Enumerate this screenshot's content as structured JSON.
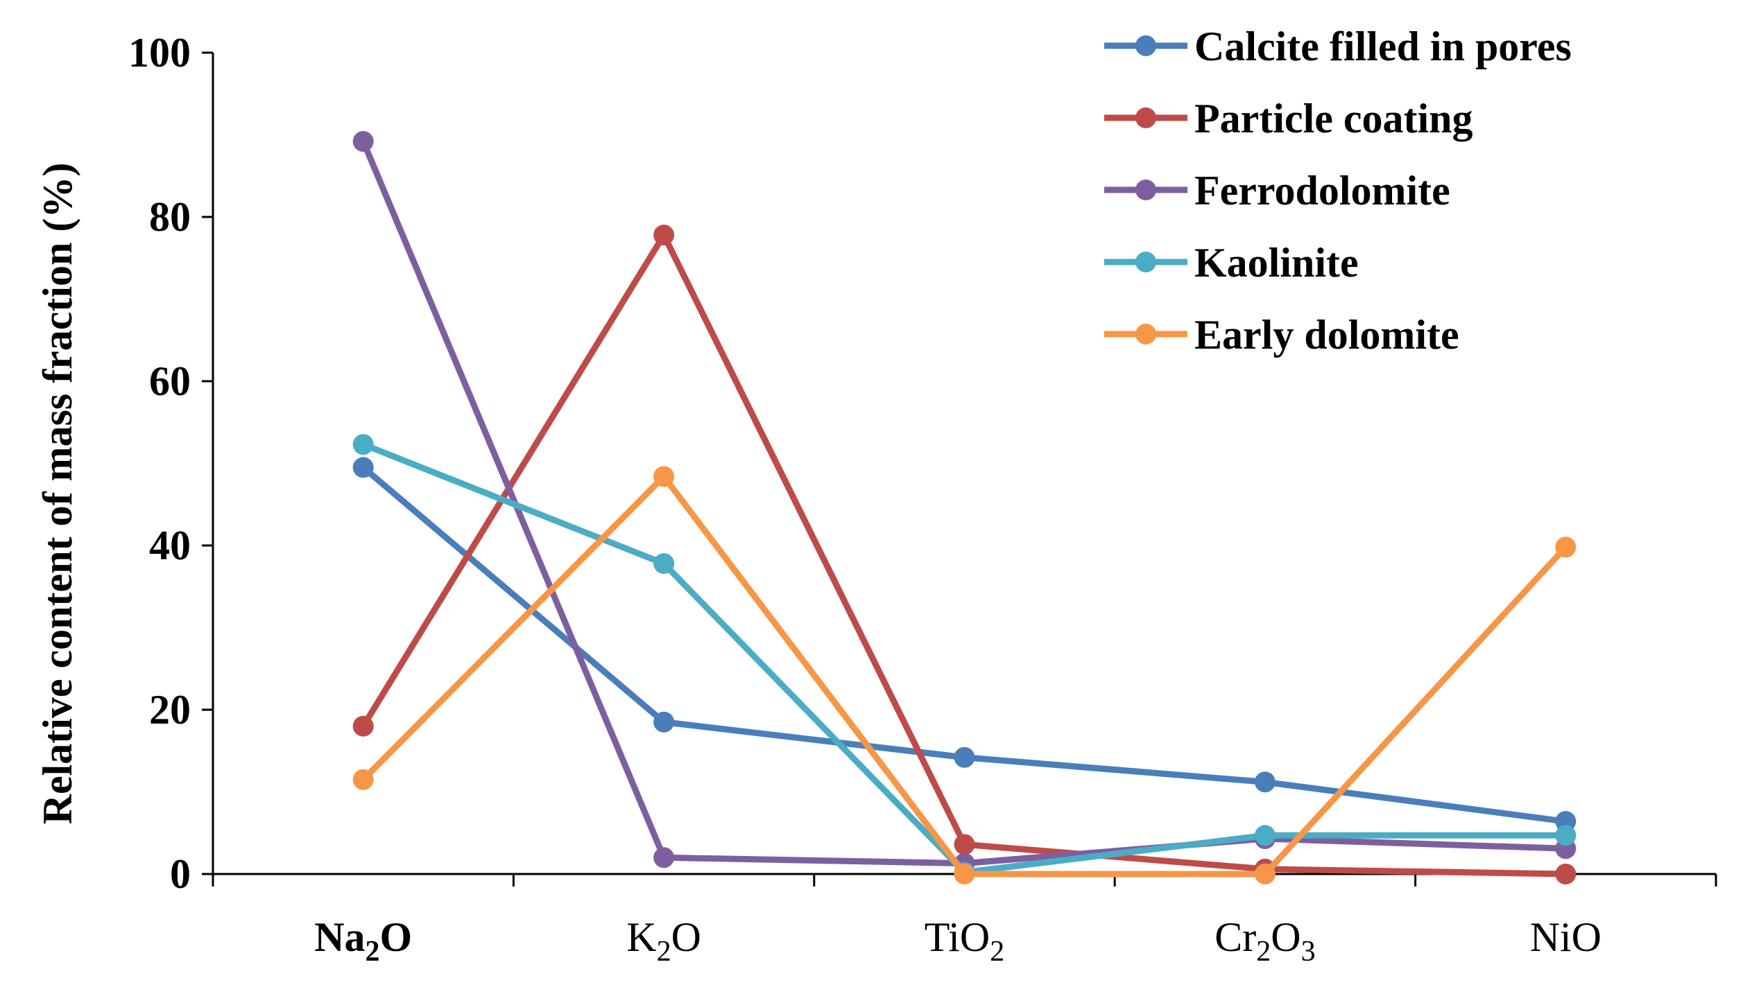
{
  "chart_data": {
    "type": "line",
    "title": "",
    "xlabel": "",
    "ylabel": "Relative content of mass fraction (%)",
    "ylim": [
      0,
      100
    ],
    "yticks": [
      0,
      20,
      40,
      60,
      80,
      100
    ],
    "categories": [
      {
        "base": "Na",
        "sub": "2",
        "tail": "O",
        "bold": true
      },
      {
        "base": "K",
        "sub": "2",
        "tail": "O",
        "bold": false
      },
      {
        "base": "TiO",
        "sub": "2",
        "tail": "",
        "bold": false
      },
      {
        "base": "Cr",
        "sub": "2",
        "tail": "O",
        "sub2": "3",
        "bold": false
      },
      {
        "base": "NiO",
        "sub": "",
        "tail": "",
        "bold": false
      }
    ],
    "legend_position": "top-right",
    "series": [
      {
        "name": "Calcite filled in pores",
        "color": "#4A7EBB",
        "values": [
          49.5,
          18.5,
          14.2,
          11.2,
          6.4
        ]
      },
      {
        "name": "Particle coating",
        "color": "#BE4B48",
        "values": [
          18.0,
          77.8,
          3.6,
          0.6,
          0.0
        ]
      },
      {
        "name": "Ferrodolomite",
        "color": "#7D5FA0",
        "values": [
          89.2,
          2.0,
          1.3,
          4.3,
          3.1
        ]
      },
      {
        "name": "Kaolinite",
        "color": "#4BACC6",
        "values": [
          52.3,
          37.8,
          0.2,
          4.7,
          4.7
        ]
      },
      {
        "name": "Early dolomite",
        "color": "#F79646",
        "values": [
          11.5,
          48.4,
          0.0,
          0.0,
          39.8
        ]
      }
    ]
  }
}
